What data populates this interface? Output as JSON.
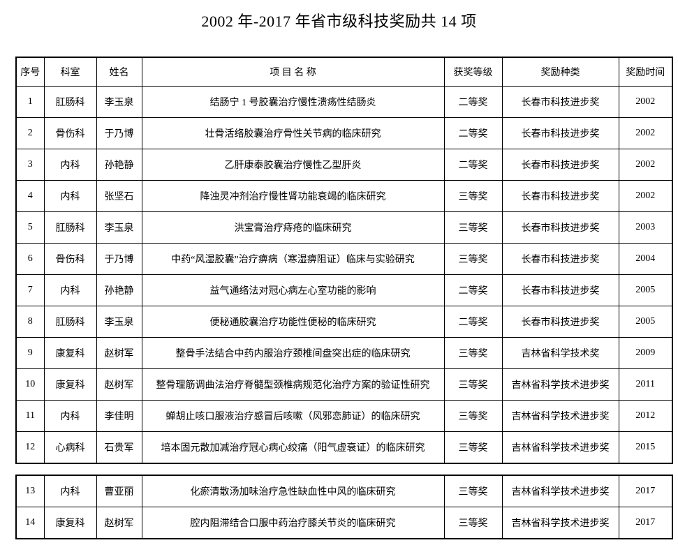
{
  "title": "2002 年-2017 年省市级科技奖励共 14 项",
  "table": {
    "headers": [
      "序号",
      "科室",
      "姓名",
      "项 目 名 称",
      "获奖等级",
      "奖励种类",
      "奖励时间"
    ],
    "section1_rows": [
      [
        "1",
        "肛肠科",
        "李玉泉",
        "结肠宁 1 号胶囊治疗慢性溃疡性结肠炎",
        "二等奖",
        "长春市科技进步奖",
        "2002"
      ],
      [
        "2",
        "骨伤科",
        "于乃博",
        "壮骨活络胶囊治疗骨性关节病的临床研究",
        "二等奖",
        "长春市科技进步奖",
        "2002"
      ],
      [
        "3",
        "内科",
        "孙艳静",
        "乙肝康泰胶囊治疗慢性乙型肝炎",
        "二等奖",
        "长春市科技进步奖",
        "2002"
      ],
      [
        "4",
        "内科",
        "张坚石",
        "降浊灵冲剂治疗慢性肾功能衰竭的临床研究",
        "三等奖",
        "长春市科技进步奖",
        "2002"
      ],
      [
        "5",
        "肛肠科",
        "李玉泉",
        "洪宝膏治疗痔疮的临床研究",
        "三等奖",
        "长春市科技进步奖",
        "2003"
      ],
      [
        "6",
        "骨伤科",
        "于乃博",
        "中药“风湿胶囊”治疗痹病（寒湿痹阻证）临床与实验研究",
        "三等奖",
        "长春市科技进步奖",
        "2004"
      ],
      [
        "7",
        "内科",
        "孙艳静",
        "益气通络法对冠心病左心室功能的影响",
        "二等奖",
        "长春市科技进步奖",
        "2005"
      ],
      [
        "8",
        "肛肠科",
        "李玉泉",
        "便秘通胶囊治疗功能性便秘的临床研究",
        "二等奖",
        "长春市科技进步奖",
        "2005"
      ],
      [
        "9",
        "康复科",
        "赵树军",
        "整骨手法结合中药内服治疗颈椎间盘突出症的临床研究",
        "三等奖",
        "吉林省科学技术奖",
        "2009"
      ],
      [
        "10",
        "康复科",
        "赵树军",
        "整骨理筋调曲法治疗脊髓型颈椎病规范化治疗方案的验证性研究",
        "三等奖",
        "吉林省科学技术进步奖",
        "2011"
      ],
      [
        "11",
        "内科",
        "李佳明",
        "蝉胡止咳口服液治疗感冒后咳嗽（风邪恋肺证）的临床研究",
        "三等奖",
        "吉林省科学技术进步奖",
        "2012"
      ],
      [
        "12",
        "心病科",
        "石贵军",
        "培本固元散加减治疗冠心病心绞痛（阳气虚衰证）的临床研究",
        "三等奖",
        "吉林省科学技术进步奖",
        "2015"
      ]
    ],
    "section2_rows": [
      [
        "13",
        "内科",
        "曹亚丽",
        "化瘀清散汤加味治疗急性缺血性中风的临床研究",
        "三等奖",
        "吉林省科学技术进步奖",
        "2017"
      ],
      [
        "14",
        "康复科",
        "赵树军",
        "腔内阻滞结合口服中药治疗膝关节炎的临床研究",
        "三等奖",
        "吉林省科学技术进步奖",
        "2017"
      ]
    ]
  }
}
